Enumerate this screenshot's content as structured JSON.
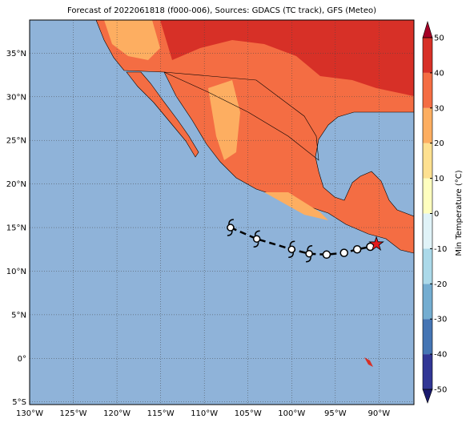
{
  "chart_data": {
    "type": "map",
    "title": "Forecast of 2022061818 (f000-006), Sources: GDACS (TC track), GFS (Meteo)",
    "xlim": [
      -130,
      -86
    ],
    "ylim": [
      -5.3,
      38.8
    ],
    "xticks": [
      {
        "value": -130,
        "label": "130°W"
      },
      {
        "value": -125,
        "label": "125°W"
      },
      {
        "value": -120,
        "label": "120°W"
      },
      {
        "value": -115,
        "label": "115°W"
      },
      {
        "value": -110,
        "label": "110°W"
      },
      {
        "value": -105,
        "label": "105°W"
      },
      {
        "value": -100,
        "label": "100°W"
      },
      {
        "value": -95,
        "label": "95°W"
      },
      {
        "value": -90,
        "label": "90°W"
      }
    ],
    "yticks": [
      {
        "value": -5,
        "label": "5°S"
      },
      {
        "value": 0,
        "label": "0°"
      },
      {
        "value": 5,
        "label": "5°N"
      },
      {
        "value": 10,
        "label": "10°N"
      },
      {
        "value": 15,
        "label": "15°N"
      },
      {
        "value": 20,
        "label": "20°N"
      },
      {
        "value": 25,
        "label": "25°N"
      },
      {
        "value": 30,
        "label": "30°N"
      },
      {
        "value": 35,
        "label": "35°N"
      }
    ],
    "grid": true,
    "track": {
      "lon": [
        -107,
        -104,
        -100,
        -98,
        -96,
        -94,
        -92.5,
        -91,
        -90.3
      ],
      "lat": [
        15,
        13.7,
        12.5,
        12,
        11.9,
        12.1,
        12.5,
        12.8,
        13.1
      ],
      "kind": [
        "cyclone",
        "cyclone",
        "cyclone",
        "cyclone",
        "low",
        "low",
        "low",
        "low",
        "current"
      ]
    },
    "colorbar": {
      "label": "Min Temperature (°C)",
      "lim": [
        -50,
        50
      ],
      "ticks": [
        -50,
        -40,
        -30,
        -20,
        -10,
        0,
        10,
        20,
        30,
        40,
        50
      ],
      "levels": [
        -50,
        -40,
        -30,
        -20,
        -10,
        0,
        10,
        20,
        30,
        40,
        50
      ],
      "colors": [
        "#313695",
        "#4575b4",
        "#74add1",
        "#abd9e9",
        "#e0f3f8",
        "#ffffbf",
        "#fee090",
        "#fdae61",
        "#f46d43",
        "#d73027"
      ],
      "extend_colors": [
        "#1a1a6e",
        "#a50026"
      ]
    }
  }
}
